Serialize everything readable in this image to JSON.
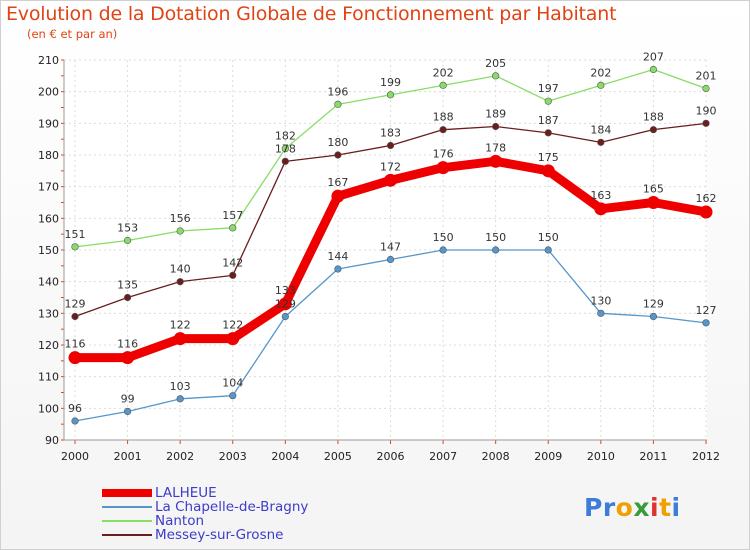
{
  "chart_data": {
    "type": "line",
    "title": "Evolution de la Dotation Globale de Fonctionnement par Habitant",
    "subtitle": "(en € et par an)",
    "xlabel": "",
    "ylabel": "",
    "ylim": [
      90,
      210
    ],
    "yticks": [
      90,
      100,
      110,
      120,
      130,
      140,
      150,
      160,
      170,
      180,
      190,
      200,
      210
    ],
    "x": [
      "2000",
      "2001",
      "2002",
      "2003",
      "2004",
      "2005",
      "2006",
      "2007",
      "2008",
      "2009",
      "2010",
      "2011",
      "2012"
    ],
    "series": [
      {
        "name": "LALHEUE",
        "color": "#ee0000",
        "emphasis": true,
        "values": [
          116,
          116,
          122,
          122,
          133,
          167,
          172,
          176,
          178,
          175,
          163,
          165,
          162
        ]
      },
      {
        "name": "La Chapelle-de-Bragny",
        "color": "#5596cc",
        "emphasis": false,
        "values": [
          96,
          99,
          103,
          104,
          129,
          144,
          147,
          150,
          150,
          150,
          130,
          129,
          127
        ]
      },
      {
        "name": "Nanton",
        "color": "#88dd66",
        "emphasis": false,
        "values": [
          151,
          153,
          156,
          157,
          182,
          196,
          199,
          202,
          205,
          197,
          202,
          207,
          201
        ]
      },
      {
        "name": "Messey-sur-Grosne",
        "color": "#6a1e1e",
        "emphasis": false,
        "values": [
          129,
          135,
          140,
          142,
          178,
          180,
          183,
          188,
          189,
          187,
          184,
          188,
          190
        ]
      }
    ],
    "legend_position": "bottom-left"
  },
  "logo": {
    "text": "Proxiti",
    "letters": [
      "P",
      "r",
      "o",
      "x",
      "i",
      "t",
      "i"
    ],
    "colors": [
      "#3b7dd8",
      "#3b7dd8",
      "#f0a000",
      "#3b9b3b",
      "#e03030",
      "#f0a000",
      "#3b7dd8"
    ]
  }
}
